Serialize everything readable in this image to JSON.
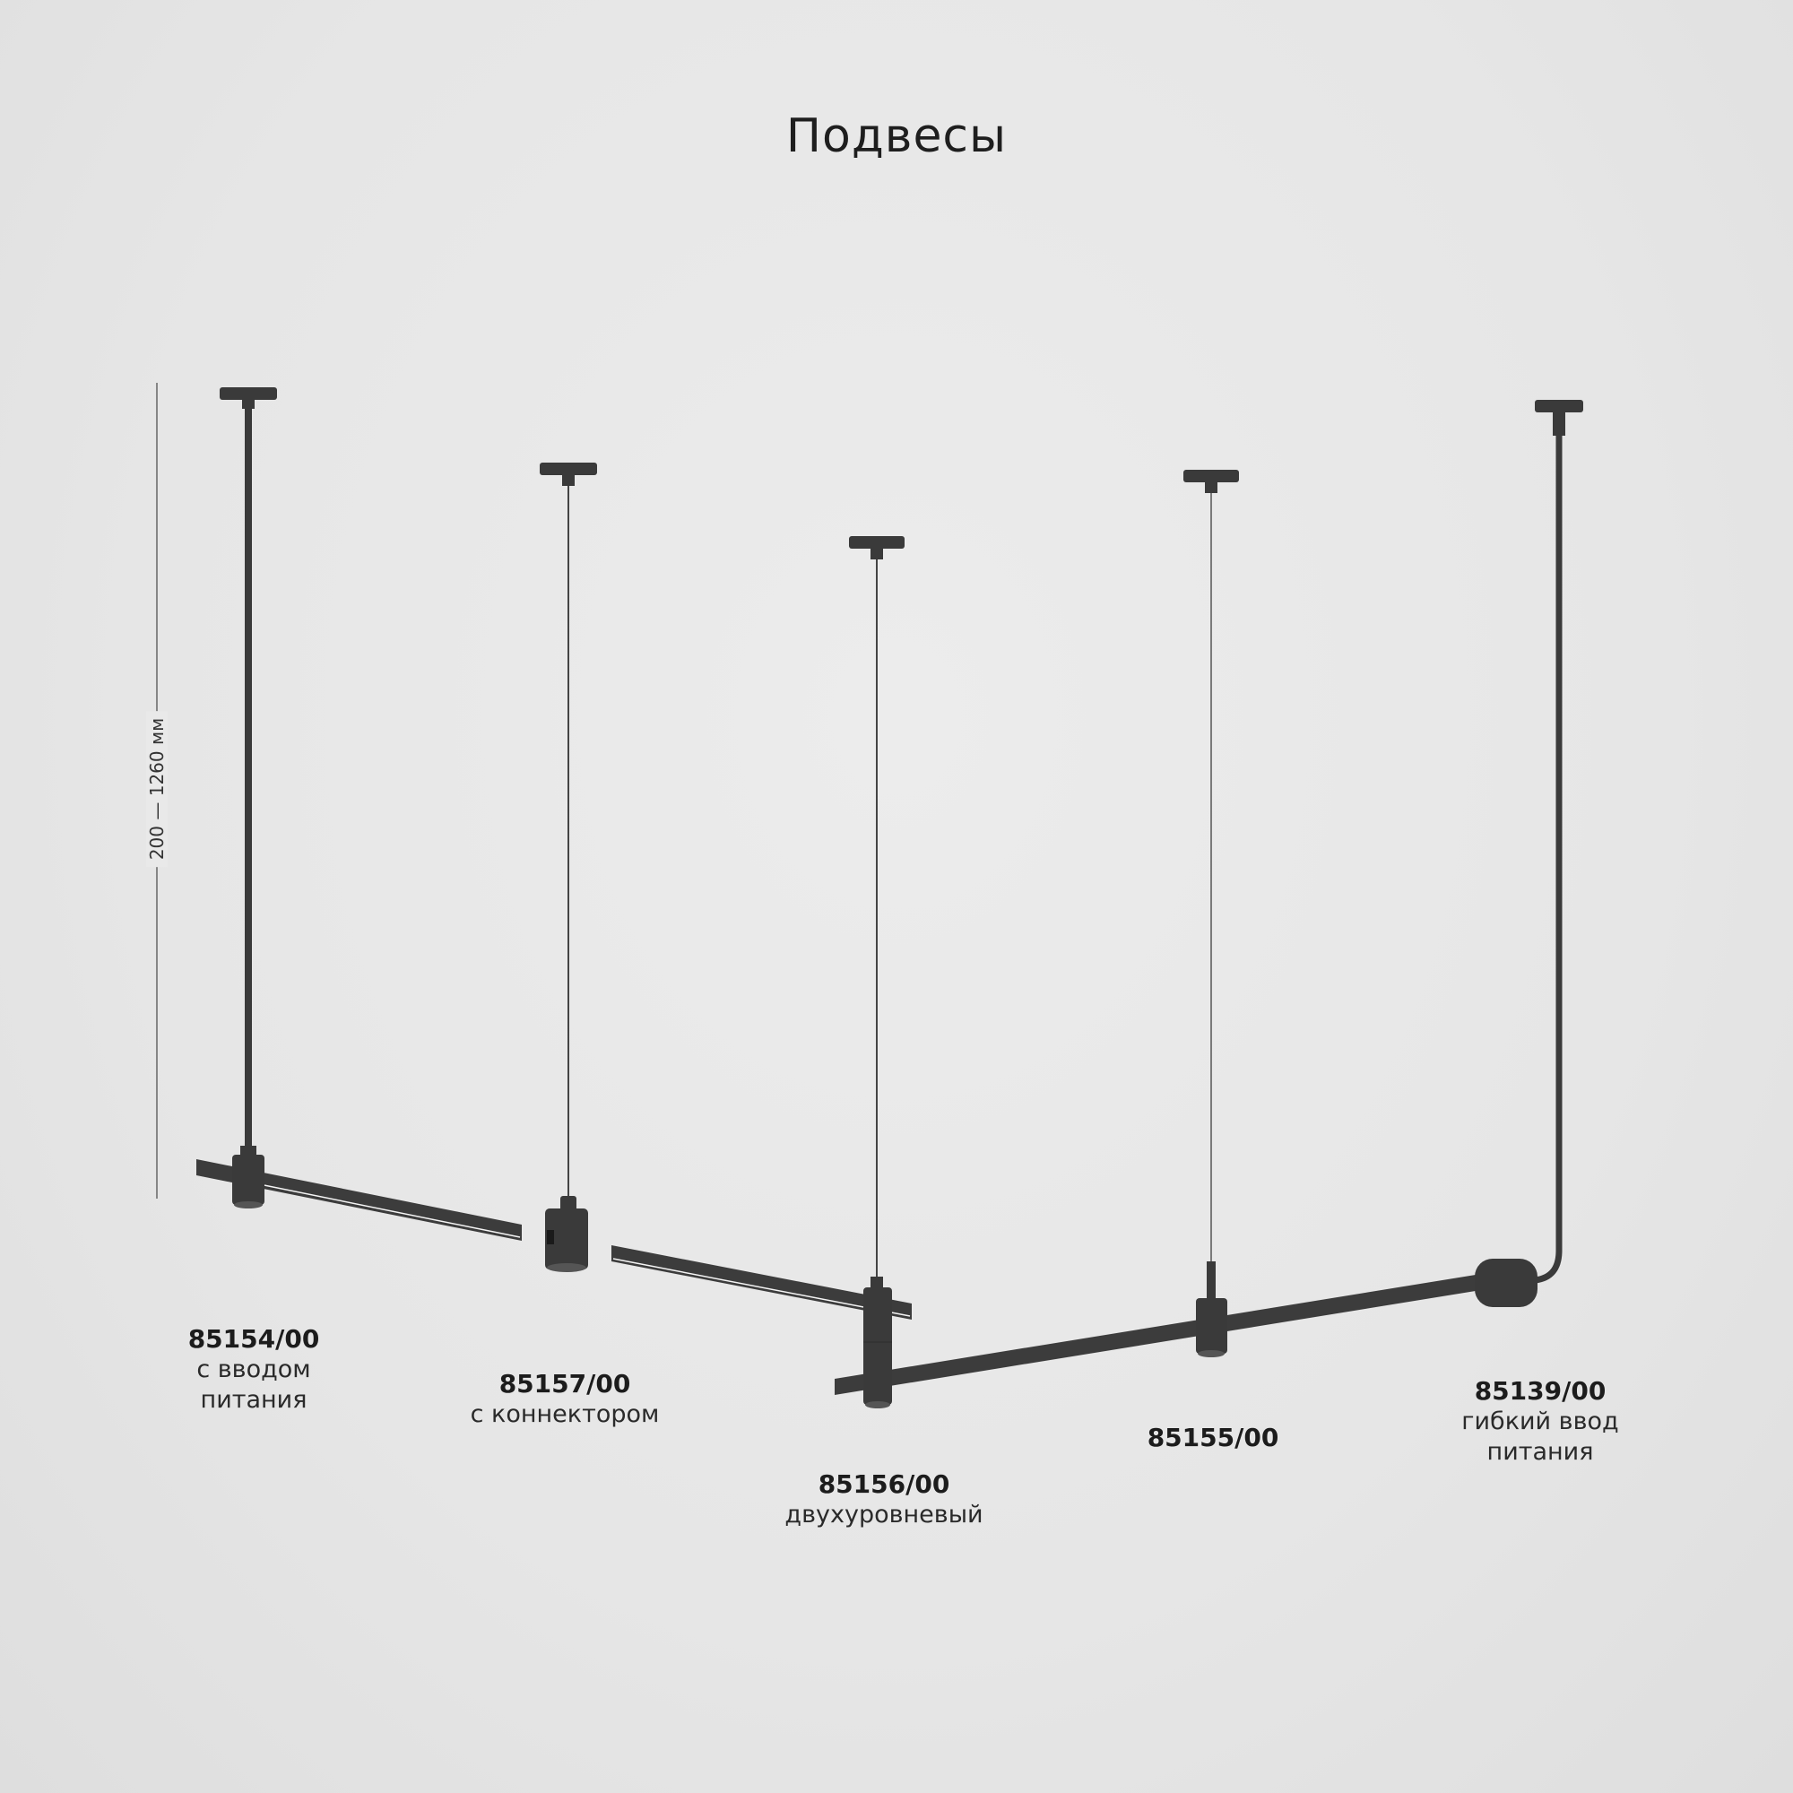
{
  "title": "Подвесы",
  "dimension": "200 — 1260 мм",
  "colors": {
    "fixture": "#3a3a3a",
    "background": "#e8e8e8"
  },
  "products": [
    {
      "code": "85154/00",
      "desc": [
        "с вводом",
        "питания"
      ]
    },
    {
      "code": "85157/00",
      "desc": [
        "с коннектором"
      ]
    },
    {
      "code": "85156/00",
      "desc": [
        "двухуровневый"
      ]
    },
    {
      "code": "85155/00",
      "desc": []
    },
    {
      "code": "85139/00",
      "desc": [
        "гибкий ввод",
        "питания"
      ]
    }
  ]
}
